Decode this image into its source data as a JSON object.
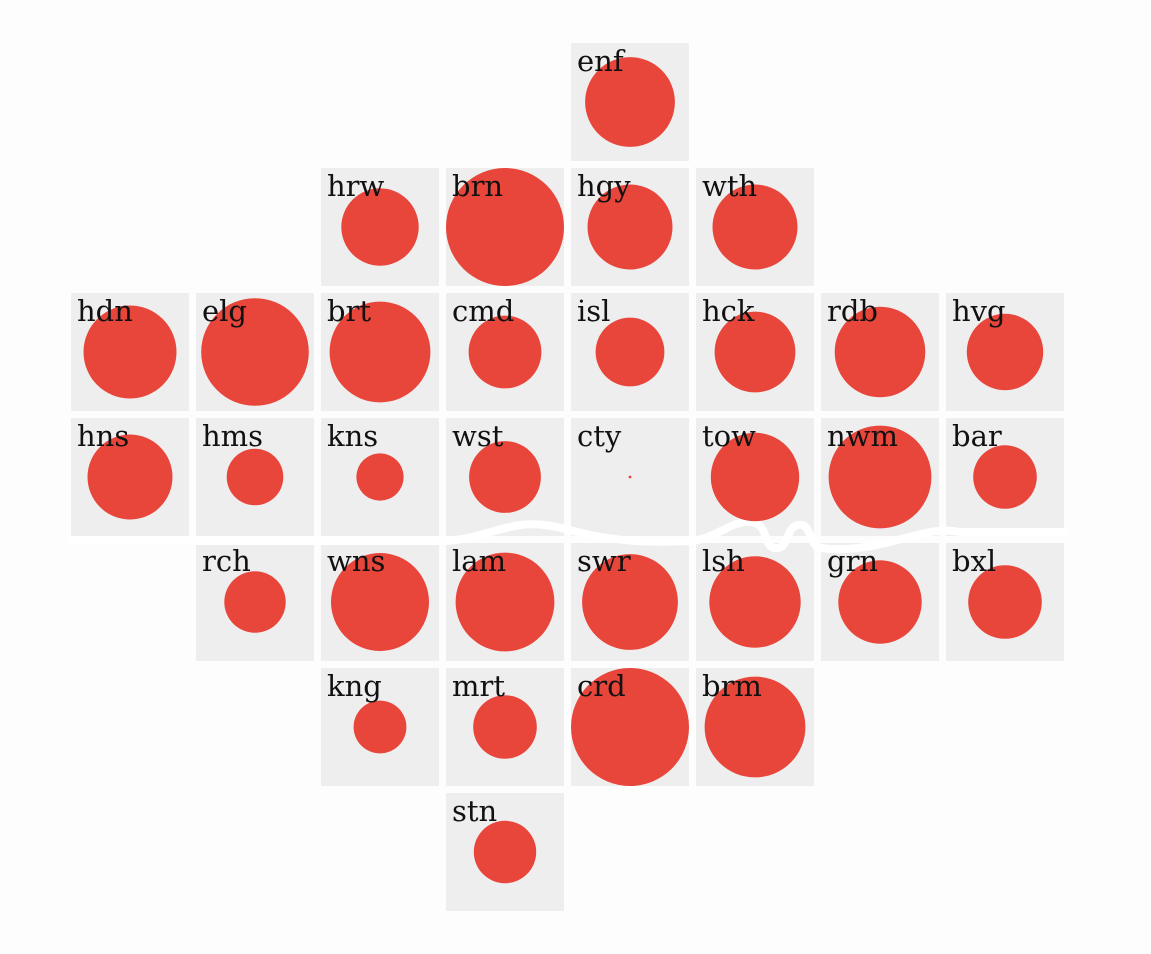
{
  "chart_data": {
    "type": "proportional-symbol tile grid map",
    "title": "",
    "colors": {
      "tile": "#efeeee",
      "circle": "#e8453b",
      "river": "#ffffff",
      "label": "#111111"
    },
    "max_value": 1.0,
    "tiles": [
      {
        "code": "enf",
        "col": 4,
        "row": 0,
        "value": 0.58
      },
      {
        "code": "hrw",
        "col": 2,
        "row": 1,
        "value": 0.43
      },
      {
        "code": "brn",
        "col": 3,
        "row": 1,
        "value": 1.0
      },
      {
        "code": "hgy",
        "col": 4,
        "row": 1,
        "value": 0.52
      },
      {
        "code": "wth",
        "col": 5,
        "row": 1,
        "value": 0.52
      },
      {
        "code": "hdn",
        "col": 0,
        "row": 2,
        "value": 0.62
      },
      {
        "code": "elg",
        "col": 1,
        "row": 2,
        "value": 0.83
      },
      {
        "code": "brt",
        "col": 2,
        "row": 2,
        "value": 0.73
      },
      {
        "code": "cmd",
        "col": 3,
        "row": 2,
        "value": 0.38
      },
      {
        "code": "isl",
        "col": 4,
        "row": 2,
        "value": 0.34
      },
      {
        "code": "hck",
        "col": 5,
        "row": 2,
        "value": 0.47
      },
      {
        "code": "rdb",
        "col": 6,
        "row": 2,
        "value": 0.59
      },
      {
        "code": "hvg",
        "col": 7,
        "row": 2,
        "value": 0.42
      },
      {
        "code": "hns",
        "col": 0,
        "row": 3,
        "value": 0.52
      },
      {
        "code": "hms",
        "col": 1,
        "row": 3,
        "value": 0.23
      },
      {
        "code": "kns",
        "col": 2,
        "row": 3,
        "value": 0.16
      },
      {
        "code": "wst",
        "col": 3,
        "row": 3,
        "value": 0.37
      },
      {
        "code": "cty",
        "col": 4,
        "row": 3,
        "value": 0.0005
      },
      {
        "code": "tow",
        "col": 5,
        "row": 3,
        "value": 0.56
      },
      {
        "code": "nwm",
        "col": 6,
        "row": 3,
        "value": 0.76
      },
      {
        "code": "bar",
        "col": 7,
        "row": 3,
        "value": 0.29
      },
      {
        "code": "rch",
        "col": 1,
        "row": 4,
        "value": 0.27
      },
      {
        "code": "wns",
        "col": 2,
        "row": 4,
        "value": 0.69
      },
      {
        "code": "lam",
        "col": 3,
        "row": 4,
        "value": 0.7
      },
      {
        "code": "swr",
        "col": 4,
        "row": 4,
        "value": 0.66
      },
      {
        "code": "lsh",
        "col": 5,
        "row": 4,
        "value": 0.6
      },
      {
        "code": "grn",
        "col": 6,
        "row": 4,
        "value": 0.5
      },
      {
        "code": "bxl",
        "col": 7,
        "row": 4,
        "value": 0.39
      },
      {
        "code": "kng",
        "col": 2,
        "row": 5,
        "value": 0.2
      },
      {
        "code": "mrt",
        "col": 3,
        "row": 5,
        "value": 0.29
      },
      {
        "code": "crd",
        "col": 4,
        "row": 5,
        "value": 1.0
      },
      {
        "code": "brm",
        "col": 5,
        "row": 5,
        "value": 0.73
      },
      {
        "code": "stn",
        "col": 3,
        "row": 6,
        "value": 0.28
      }
    ]
  }
}
